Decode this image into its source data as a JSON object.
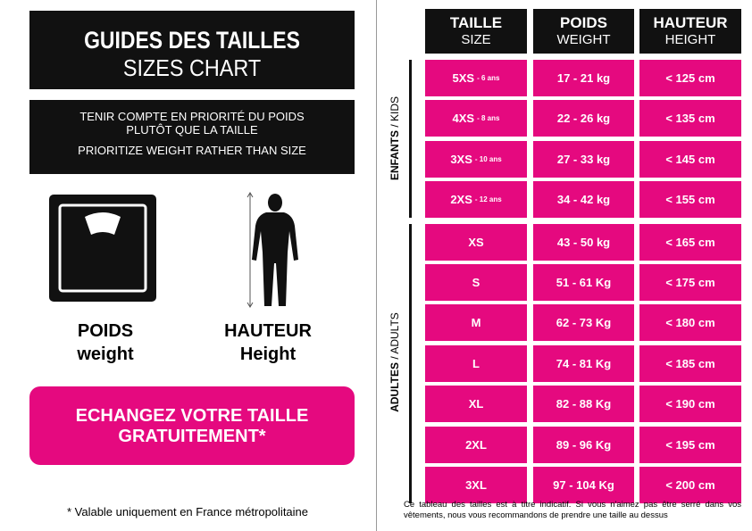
{
  "header": {
    "title": "GUIDES DES TAILLES",
    "subtitle": "SIZES CHART"
  },
  "advice": {
    "line1": "TENIR COMPTE EN PRIORITÉ DU POIDS",
    "line2": "PLUTÔT QUE LA TAILLE",
    "english": "PRIORITIZE WEIGHT RATHER THAN SIZE"
  },
  "icons": {
    "weight": {
      "label": "POIDS",
      "english": "weight"
    },
    "height": {
      "label": "HAUTEUR",
      "english": "Height"
    }
  },
  "exchange": {
    "line1": "ECHANGEZ VOTRE TAILLE",
    "line2": "GRATUITEMENT*"
  },
  "footnote": "* Valable uniquement en France métropolitaine",
  "table": {
    "columns": [
      {
        "label": "TAILLE",
        "english": "SIZE"
      },
      {
        "label": "POIDS",
        "english": "WEIGHT"
      },
      {
        "label": "HAUTEUR",
        "english": "HEIGHT"
      }
    ],
    "groups": [
      {
        "label": "ENFANTS",
        "english": "/ KIDS",
        "rows": [
          {
            "size": "5XS",
            "age": "- 6 ans",
            "weight": "17 - 21 kg",
            "height": "< 125 cm"
          },
          {
            "size": "4XS",
            "age": "- 8 ans",
            "weight": "22 - 26 kg",
            "height": "< 135 cm"
          },
          {
            "size": "3XS",
            "age": "- 10 ans",
            "weight": "27 - 33 kg",
            "height": "< 145 cm"
          },
          {
            "size": "2XS",
            "age": "- 12 ans",
            "weight": "34 - 42 kg",
            "height": "< 155 cm"
          }
        ]
      },
      {
        "label": "ADULTES",
        "english": "/ ADULTS",
        "rows": [
          {
            "size": "XS",
            "weight": "43 - 50 kg",
            "height": "< 165 cm"
          },
          {
            "size": "S",
            "weight": "51 - 61 Kg",
            "height": "< 175 cm"
          },
          {
            "size": "M",
            "weight": "62 - 73 Kg",
            "height": "< 180 cm"
          },
          {
            "size": "L",
            "weight": "74 - 81 Kg",
            "height": "< 185 cm"
          },
          {
            "size": "XL",
            "weight": "82 - 88 Kg",
            "height": "< 190 cm"
          },
          {
            "size": "2XL",
            "weight": "89 - 96 Kg",
            "height": "< 195 cm"
          },
          {
            "size": "3XL",
            "weight": "97 - 104 Kg",
            "height": "< 200 cm"
          }
        ]
      }
    ],
    "note": "Ce tableau des tailles est à titre indicatif. Si vous n'aimez pas être serré dans vos vêtements, nous vous recommandons de prendre une taille au dessus"
  }
}
